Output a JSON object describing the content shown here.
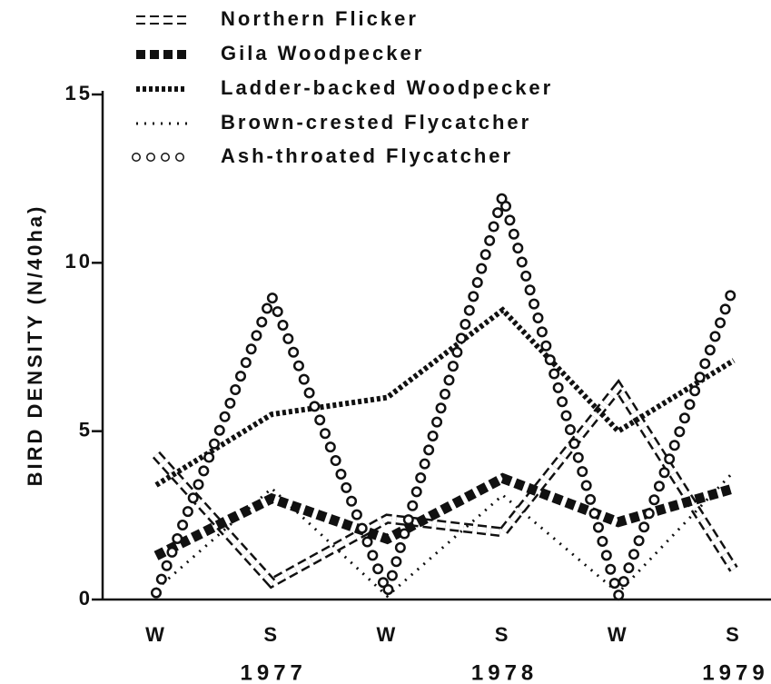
{
  "chart_data": {
    "type": "line",
    "y_label": "BIRD DENSITY (N/40ha)",
    "categories": [
      "W",
      "S",
      "W",
      "S",
      "W",
      "S"
    ],
    "year_labels": [
      "1977",
      "1978",
      "1979"
    ],
    "ylim": [
      0,
      15
    ],
    "yticks": [
      0,
      5,
      10,
      15
    ],
    "series": [
      {
        "name": "Northern Flicker",
        "style": "squares-open",
        "color": "#111111",
        "values": [
          4.3,
          0.5,
          2.4,
          2.0,
          6.3,
          0.9
        ]
      },
      {
        "name": "Gila Woodpecker",
        "style": "squares-filled",
        "color": "#111111",
        "values": [
          1.3,
          3.0,
          1.8,
          3.6,
          2.3,
          3.3
        ]
      },
      {
        "name": "Ladder-backed Woodpecker",
        "style": "stars",
        "color": "#111111",
        "values": [
          3.4,
          5.5,
          6.0,
          8.6,
          5.0,
          7.1
        ]
      },
      {
        "name": "Brown-crested Flycatcher",
        "style": "dots",
        "color": "#111111",
        "values": [
          0.3,
          3.3,
          0.1,
          3.1,
          0.2,
          3.8
        ]
      },
      {
        "name": "Ash-throated Flycatcher",
        "style": "circles",
        "color": "#111111",
        "values": [
          0.2,
          9.0,
          0.2,
          12.0,
          0.1,
          9.3
        ]
      }
    ]
  }
}
